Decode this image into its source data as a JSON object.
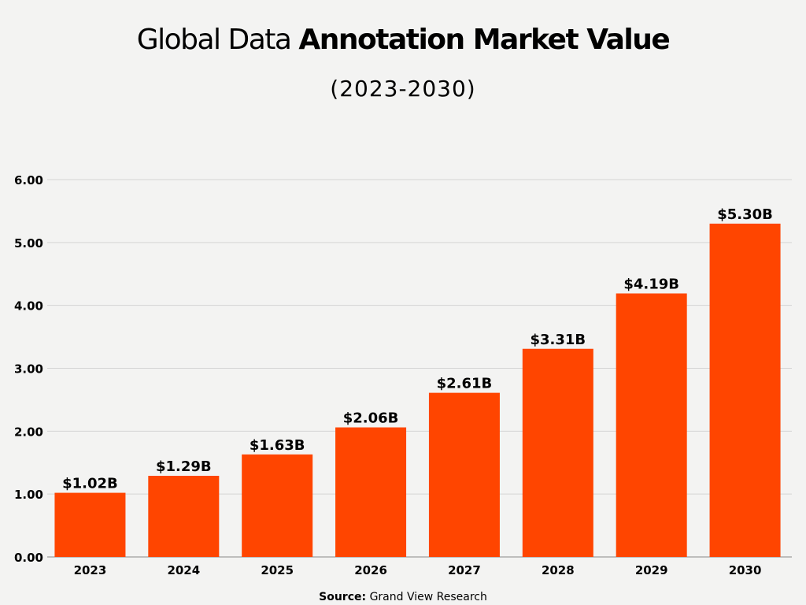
{
  "chart_data": {
    "type": "bar",
    "title_light": "Global Data",
    "title_bold": "Annotation Market Value",
    "subtitle": "(2023-2030)",
    "categories": [
      "2023",
      "2024",
      "2025",
      "2026",
      "2027",
      "2028",
      "2029",
      "2030"
    ],
    "values": [
      1.02,
      1.29,
      1.63,
      2.06,
      2.61,
      3.31,
      4.19,
      5.3
    ],
    "data_labels": [
      "$1.02B",
      "$1.29B",
      "$1.63B",
      "$2.06B",
      "$2.61B",
      "$3.31B",
      "$4.19B",
      "$5.30B"
    ],
    "yticks": [
      "0.00",
      "1.00",
      "2.00",
      "3.00",
      "4.00",
      "5.00",
      "6.00"
    ],
    "ylim": [
      0,
      6
    ],
    "grid": true,
    "xlabel": "",
    "ylabel": "",
    "bar_color": "#ff4500",
    "source_label": "Source:",
    "source_text": "Grand View Research"
  }
}
